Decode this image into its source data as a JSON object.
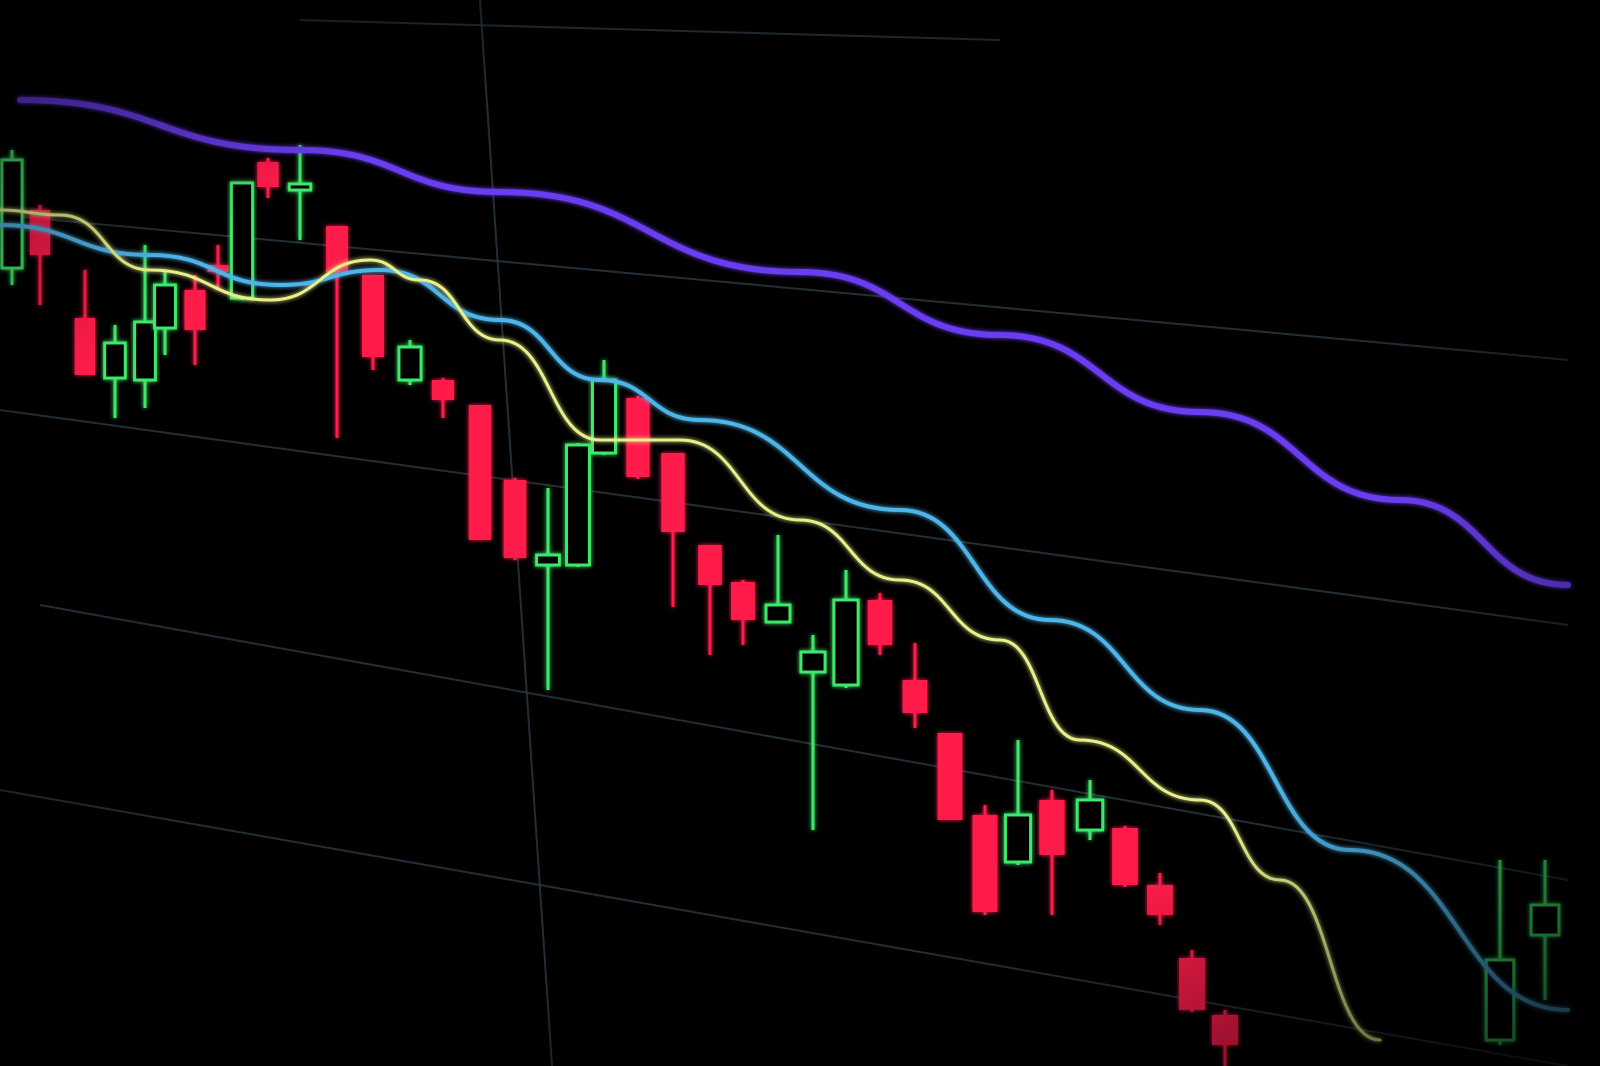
{
  "scene": {
    "subject": "candlestick-chart-on-screen",
    "colors": {
      "background": "#000000",
      "bullish_candle": "#3ee86a",
      "bearish_candle": "#ff1f4b",
      "moving_average_slow": "#6a3cf0",
      "moving_average_mid": "#4fb4e8",
      "moving_average_fast": "#e8f08a",
      "gridline": "#2a3a44"
    },
    "icons": []
  }
}
